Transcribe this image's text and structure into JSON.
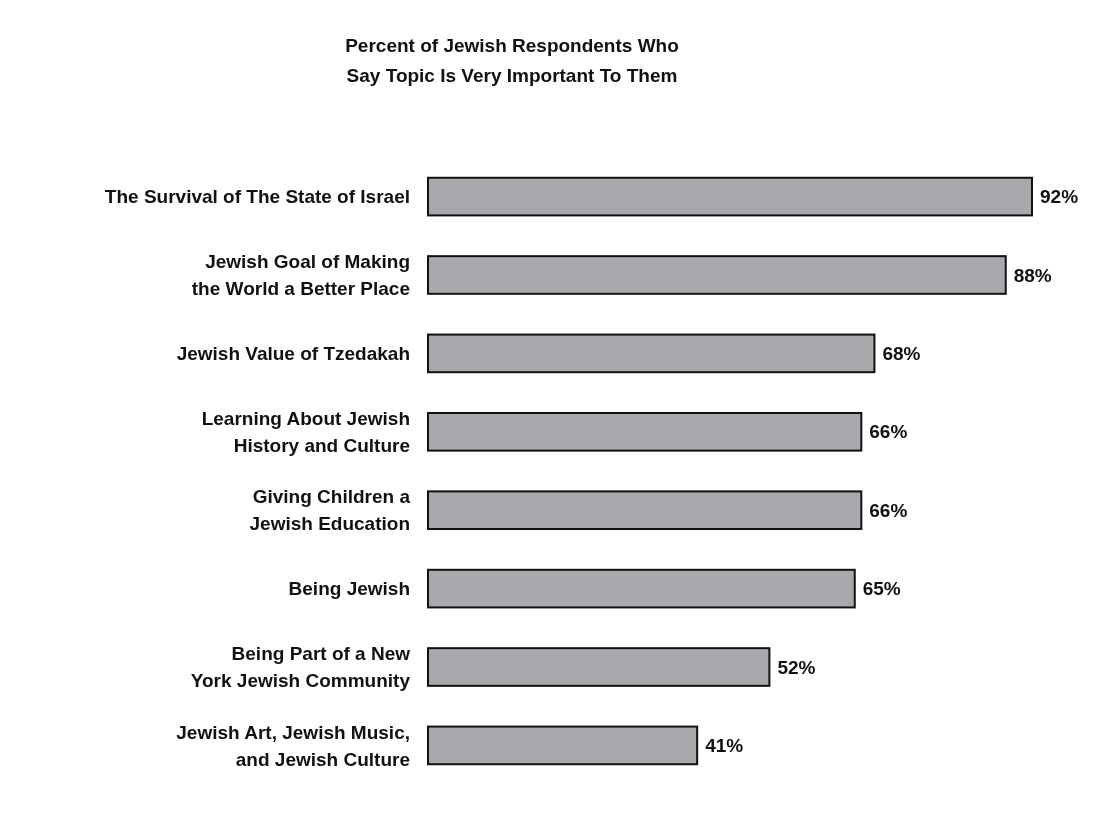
{
  "chart_data": {
    "type": "bar",
    "orientation": "horizontal",
    "title": "Percent of Jewish Respondents Who Say Topic Is Very Important To Them",
    "categories": [
      "The Survival of The State of Israel",
      "Jewish Goal of Making the World a Better Place",
      "Jewish Value of Tzedakah",
      "Learning About Jewish History and Culture",
      "Giving Children a Jewish Education",
      "Being Jewish",
      "Being Part of a New York Jewish Community",
      "Jewish Art, Jewish Music, and Jewish Culture"
    ],
    "values": [
      92,
      88,
      68,
      66,
      66,
      65,
      52,
      41
    ],
    "value_labels": [
      "92%",
      "88%",
      "68%",
      "66%",
      "66%",
      "65%",
      "52%",
      "41%"
    ],
    "color": "#a7a9ac"
  }
}
